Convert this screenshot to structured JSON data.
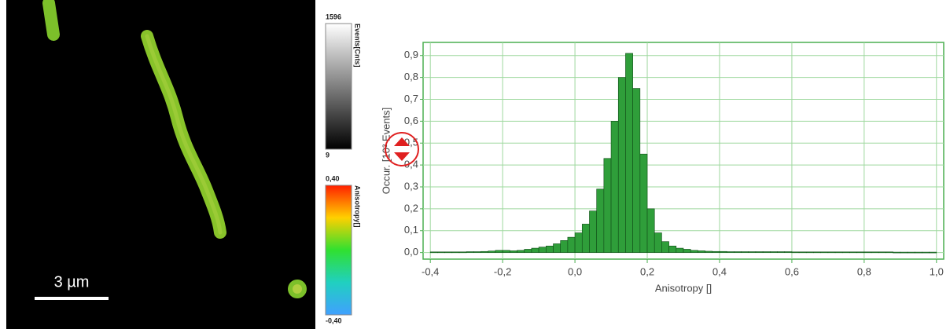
{
  "image": {
    "scale_bar": "3 µm",
    "intensity_bar": {
      "max": "1596",
      "min": "9",
      "label": "Events[Cnts]"
    },
    "anisotropy_bar": {
      "max": "0,40",
      "min": "-0,40",
      "label": "Anisotropy[]"
    }
  },
  "chart_data": {
    "type": "histogram",
    "x_label": "Anisotropy []",
    "y_label": "Occur. [10³ Events]",
    "bins": [
      -0.4,
      -0.38,
      -0.36,
      -0.34,
      -0.32,
      -0.3,
      -0.28,
      -0.26,
      -0.24,
      -0.22,
      -0.2,
      -0.18,
      -0.16,
      -0.14,
      -0.12,
      -0.1,
      -0.08,
      -0.06,
      -0.04,
      -0.02,
      0,
      0.02,
      0.04,
      0.06,
      0.08,
      0.1,
      0.12,
      0.14,
      0.16,
      0.18,
      0.2,
      0.22,
      0.24,
      0.26,
      0.28,
      0.3,
      0.32,
      0.34,
      0.36,
      0.38,
      0.4,
      0.42,
      0.44,
      0.46,
      0.48,
      0.5,
      0.52,
      0.54,
      0.56,
      0.58,
      0.6,
      0.62,
      0.64,
      0.66,
      0.68,
      0.7,
      0.72,
      0.74,
      0.76,
      0.78,
      0.8,
      0.82,
      0.84,
      0.86,
      0.88,
      0.9,
      0.92,
      0.94,
      0.96,
      0.98,
      1
    ],
    "values": [
      0.003,
      0.003,
      0.003,
      0.003,
      0.003,
      0.004,
      0.004,
      0.005,
      0.007,
      0.01,
      0.01,
      0.008,
      0.01,
      0.015,
      0.02,
      0.025,
      0.03,
      0.04,
      0.055,
      0.07,
      0.09,
      0.13,
      0.19,
      0.29,
      0.43,
      0.6,
      0.8,
      0.91,
      0.75,
      0.45,
      0.2,
      0.09,
      0.05,
      0.03,
      0.02,
      0.015,
      0.01,
      0.008,
      0.006,
      0.005,
      0.005,
      0.004,
      0.004,
      0.004,
      0.004,
      0.004,
      0.004,
      0.004,
      0.004,
      0.004,
      0.003,
      0.003,
      0.003,
      0.003,
      0.003,
      0.003,
      0.003,
      0.003,
      0.003,
      0.003,
      0.003,
      0.003,
      0.003,
      0.003,
      0.002,
      0.002,
      0.002,
      0.002,
      0.002,
      0.002
    ],
    "color": "#2f9e3a",
    "xlim": [
      -0.42,
      1.02
    ],
    "ylim": [
      -0.03,
      0.96
    ],
    "xticks": [
      {
        "value": -0.4,
        "label": "-0,4"
      },
      {
        "value": -0.2,
        "label": "-0,2"
      },
      {
        "value": 0,
        "label": "0,0"
      },
      {
        "value": 0.2,
        "label": "0,2"
      },
      {
        "value": 0.4,
        "label": "0,4"
      },
      {
        "value": 0.6,
        "label": "0,6"
      },
      {
        "value": 0.8,
        "label": "0,8"
      },
      {
        "value": 1,
        "label": "1,0"
      }
    ],
    "yticks": [
      {
        "value": 0,
        "label": "0,0"
      },
      {
        "value": 0.1,
        "label": "0,1"
      },
      {
        "value": 0.2,
        "label": "0,2"
      },
      {
        "value": 0.3,
        "label": "0,3"
      },
      {
        "value": 0.4,
        "label": "0,4"
      },
      {
        "value": 0.5,
        "label": "0,5"
      },
      {
        "value": 0.6,
        "label": "0,6"
      },
      {
        "value": 0.7,
        "label": "0,7"
      },
      {
        "value": 0.8,
        "label": "0,8"
      },
      {
        "value": 0.9,
        "label": "0,9"
      }
    ],
    "grid": true
  }
}
